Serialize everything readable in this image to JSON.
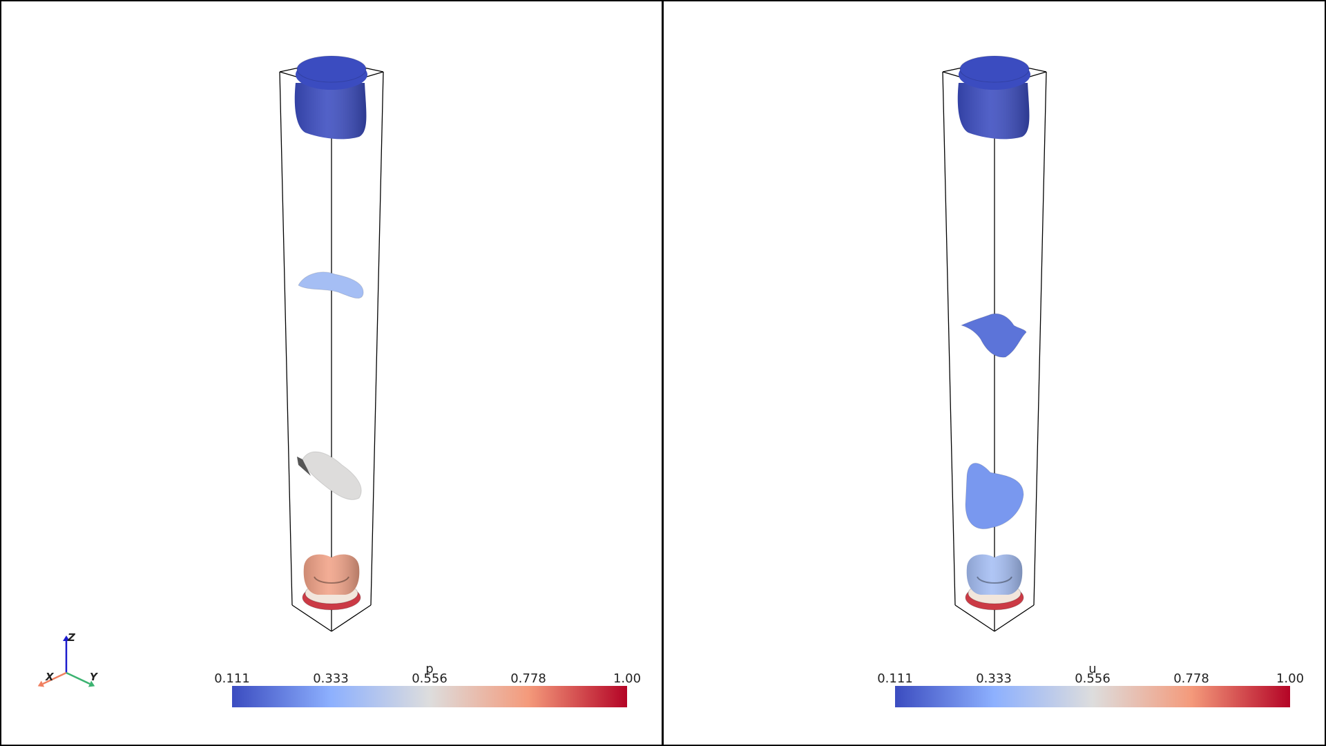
{
  "viewports": [
    {
      "id": "left",
      "scalar_name": "p",
      "colorbar": {
        "ticks": [
          "0.111",
          "0.333",
          "0.556",
          "0.778",
          "1.00"
        ],
        "range": [
          0.111,
          1.0
        ]
      },
      "isosurfaces": [
        {
          "level": "top",
          "value": 0.111
        },
        {
          "level": "upper-mid",
          "value": 0.4
        },
        {
          "level": "lower-mid",
          "value": 0.56
        },
        {
          "level": "bottom",
          "value": 0.75
        }
      ]
    },
    {
      "id": "right",
      "scalar_name": "u",
      "colorbar": {
        "ticks": [
          "0.111",
          "0.333",
          "0.556",
          "0.778",
          "1.00"
        ],
        "range": [
          0.111,
          1.0
        ]
      },
      "isosurfaces": [
        {
          "level": "top",
          "value": 0.111
        },
        {
          "level": "upper-mid",
          "value": 0.2
        },
        {
          "level": "lower-mid",
          "value": 0.28
        },
        {
          "level": "bottom",
          "value": 0.4
        }
      ]
    }
  ],
  "axes": {
    "x_label": "X",
    "y_label": "Y",
    "z_label": "Z"
  },
  "colors": {
    "colormap": [
      "#3b4cc0",
      "#8db0fe",
      "#dddddd",
      "#f49a7b",
      "#b40426"
    ],
    "frame": "#000000",
    "x_axis": "#f08060",
    "y_axis": "#3cb371",
    "z_axis": "#1a1acd"
  }
}
